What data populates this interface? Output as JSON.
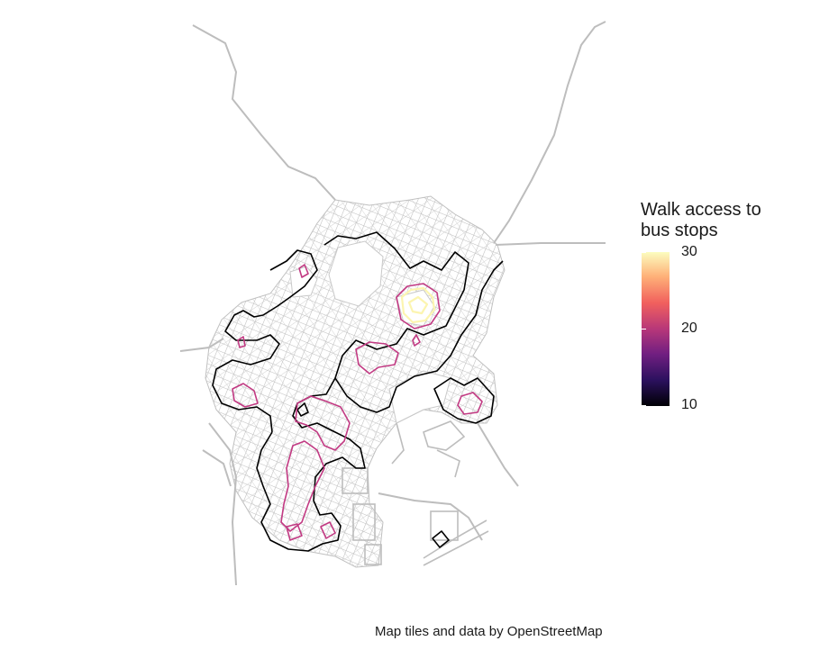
{
  "legend": {
    "title_line1": "Walk access to",
    "title_line2": "bus stops",
    "ticks": [
      "30",
      "20",
      "10"
    ],
    "scale_min": 10,
    "scale_max": 30,
    "palette": "magma",
    "colors": [
      "#000004",
      "#2c115f",
      "#721f81",
      "#b73779",
      "#f1605d",
      "#feb078",
      "#fcfdbf"
    ]
  },
  "caption": "Map tiles and data by OpenStreetMap",
  "colors": {
    "roads": "#bdbdbd",
    "contour_10": "#000000",
    "contour_20": "#c23a83",
    "contour_30": "#fcf5b0"
  }
}
